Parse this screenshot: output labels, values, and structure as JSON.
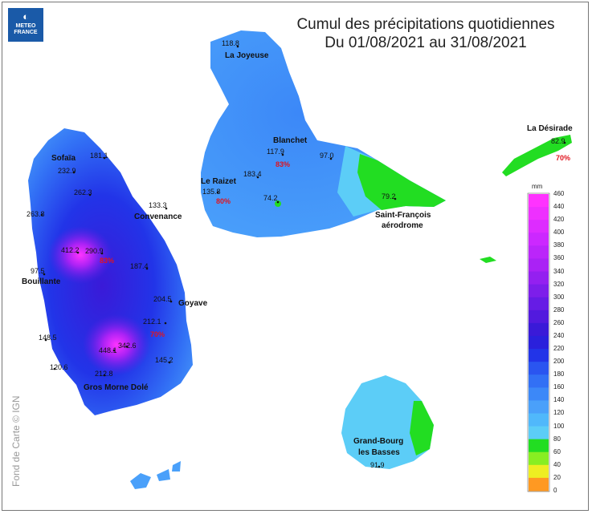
{
  "logo": {
    "mark": "◐",
    "line1": "METEO",
    "line2": "FRANCE"
  },
  "title": {
    "line1": "Cumul des précipitations quotidiennes",
    "line2": "Du 01/08/2021 au 31/08/2021"
  },
  "credit": "Fond de Carte © IGN",
  "places": {
    "la_joyeuse": "La Joyeuse",
    "blanchet": "Blanchet",
    "la_desirade": "La Désirade",
    "sofaia": "Sofaïa",
    "le_raizet": "Le Raizet",
    "convenance": "Convenance",
    "saint_francois_1": "Saint-François",
    "saint_francois_2": "aérodrome",
    "bouillante": "Bouillante",
    "goyave": "Goyave",
    "gros_morne": "Gros Morne Dolé",
    "grand_bourg_1": "Grand-Bourg",
    "grand_bourg_2": "les Basses"
  },
  "values": {
    "v1": "118.8",
    "v2": "117.9",
    "v3": "97.0",
    "v4": "183.4",
    "v5": "74.2",
    "v6": "79.2",
    "v7": "135.8",
    "v8": "133.3",
    "v9": "181.1",
    "v10": "232.9",
    "v11": "262.3",
    "v12": "263.8",
    "v13": "412.2",
    "v14": "290.9",
    "v15": "97.5",
    "v16": "187.4",
    "v17": "204.5",
    "v18": "212.1",
    "v19": "148.5",
    "v20": "448.1",
    "v21": "342.6",
    "v22": "145.2",
    "v23": "120.6",
    "v24": "212.8",
    "v25": "91.9",
    "v26": "82.9"
  },
  "percents": {
    "p1": "83%",
    "p2": "80%",
    "p3": "83%",
    "p4": "70%",
    "p5": "70%"
  },
  "legend": {
    "unit": "mm",
    "ticks": [
      "460",
      "440",
      "420",
      "400",
      "380",
      "360",
      "340",
      "320",
      "300",
      "280",
      "260",
      "240",
      "220",
      "200",
      "180",
      "160",
      "140",
      "120",
      "100",
      "80",
      "60",
      "40",
      "20",
      "0"
    ],
    "colors": [
      "#ff33ff",
      "#ee30ff",
      "#dd2cff",
      "#cc28ff",
      "#bb25fa",
      "#aa22f5",
      "#9420f0",
      "#7d1eea",
      "#661ce5",
      "#521ade",
      "#3a1ad8",
      "#2a20dc",
      "#2234e8",
      "#2a55f0",
      "#3270f5",
      "#3c88f8",
      "#4aa0fa",
      "#50b8fb",
      "#5ccdf7",
      "#22dd22",
      "#88ee22",
      "#eeee22",
      "#ff9922",
      "#bb2222"
    ]
  }
}
